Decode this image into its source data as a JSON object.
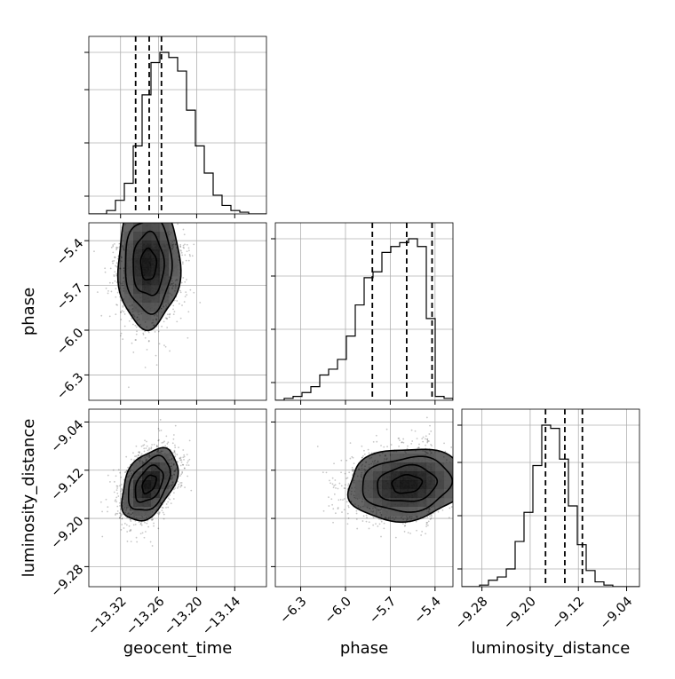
{
  "chart_data": {
    "type": "corner",
    "parameters": [
      "geocent_time",
      "phase",
      "luminosity_distance"
    ],
    "ranges": {
      "geocent_time": [
        -13.37,
        -13.09
      ],
      "phase": [
        -6.47,
        -5.28
      ],
      "luminosity_distance": [
        -9.3133,
        -9.0187
      ]
    },
    "ticks": {
      "geocent_time": [
        -13.32,
        -13.26,
        -13.2,
        -13.14
      ],
      "phase": [
        -6.3,
        -6.0,
        -5.7,
        -5.4
      ],
      "luminosity_distance": [
        -9.28,
        -9.2,
        -9.12,
        -9.04
      ]
    },
    "tick_labels": {
      "geocent_time": [
        "−13.32",
        "−13.26",
        "−13.20",
        "−13.14"
      ],
      "phase": [
        "−6.3",
        "−6.0",
        "−5.7",
        "−5.4"
      ],
      "luminosity_distance": [
        "−9.28",
        "−9.20",
        "−9.12",
        "−9.04"
      ]
    },
    "axis_labels": {
      "geocent_time": "geocent_time",
      "phase": "phase",
      "luminosity_distance": "luminosity_distance"
    },
    "quantiles": {
      "geocent_time": [
        -13.2962,
        -13.2748,
        -13.2555
      ],
      "phase": [
        -5.82,
        -5.59,
        -5.42
      ],
      "luminosity_distance": [
        -9.1745,
        -9.1425,
        -9.1134
      ]
    },
    "histograms": {
      "geocent_time": [
        0,
        0,
        2,
        8,
        18,
        40,
        70,
        89,
        95,
        92,
        84,
        61,
        40,
        24,
        11,
        5,
        2,
        1,
        0,
        0
      ],
      "phase": [
        0,
        1,
        2,
        4,
        7,
        13,
        16,
        21,
        33,
        49,
        63,
        66,
        76,
        79,
        81,
        83,
        79,
        42,
        2,
        1
      ],
      "luminosity_distance": [
        0,
        0,
        1,
        4,
        6,
        11,
        28,
        46,
        75,
        100,
        98,
        79,
        50,
        26,
        10,
        3,
        1,
        0,
        0,
        0
      ]
    },
    "contour_levels": [
      0.118,
      0.393,
      0.675,
      0.865
    ],
    "grid": true,
    "color": "#000000"
  }
}
